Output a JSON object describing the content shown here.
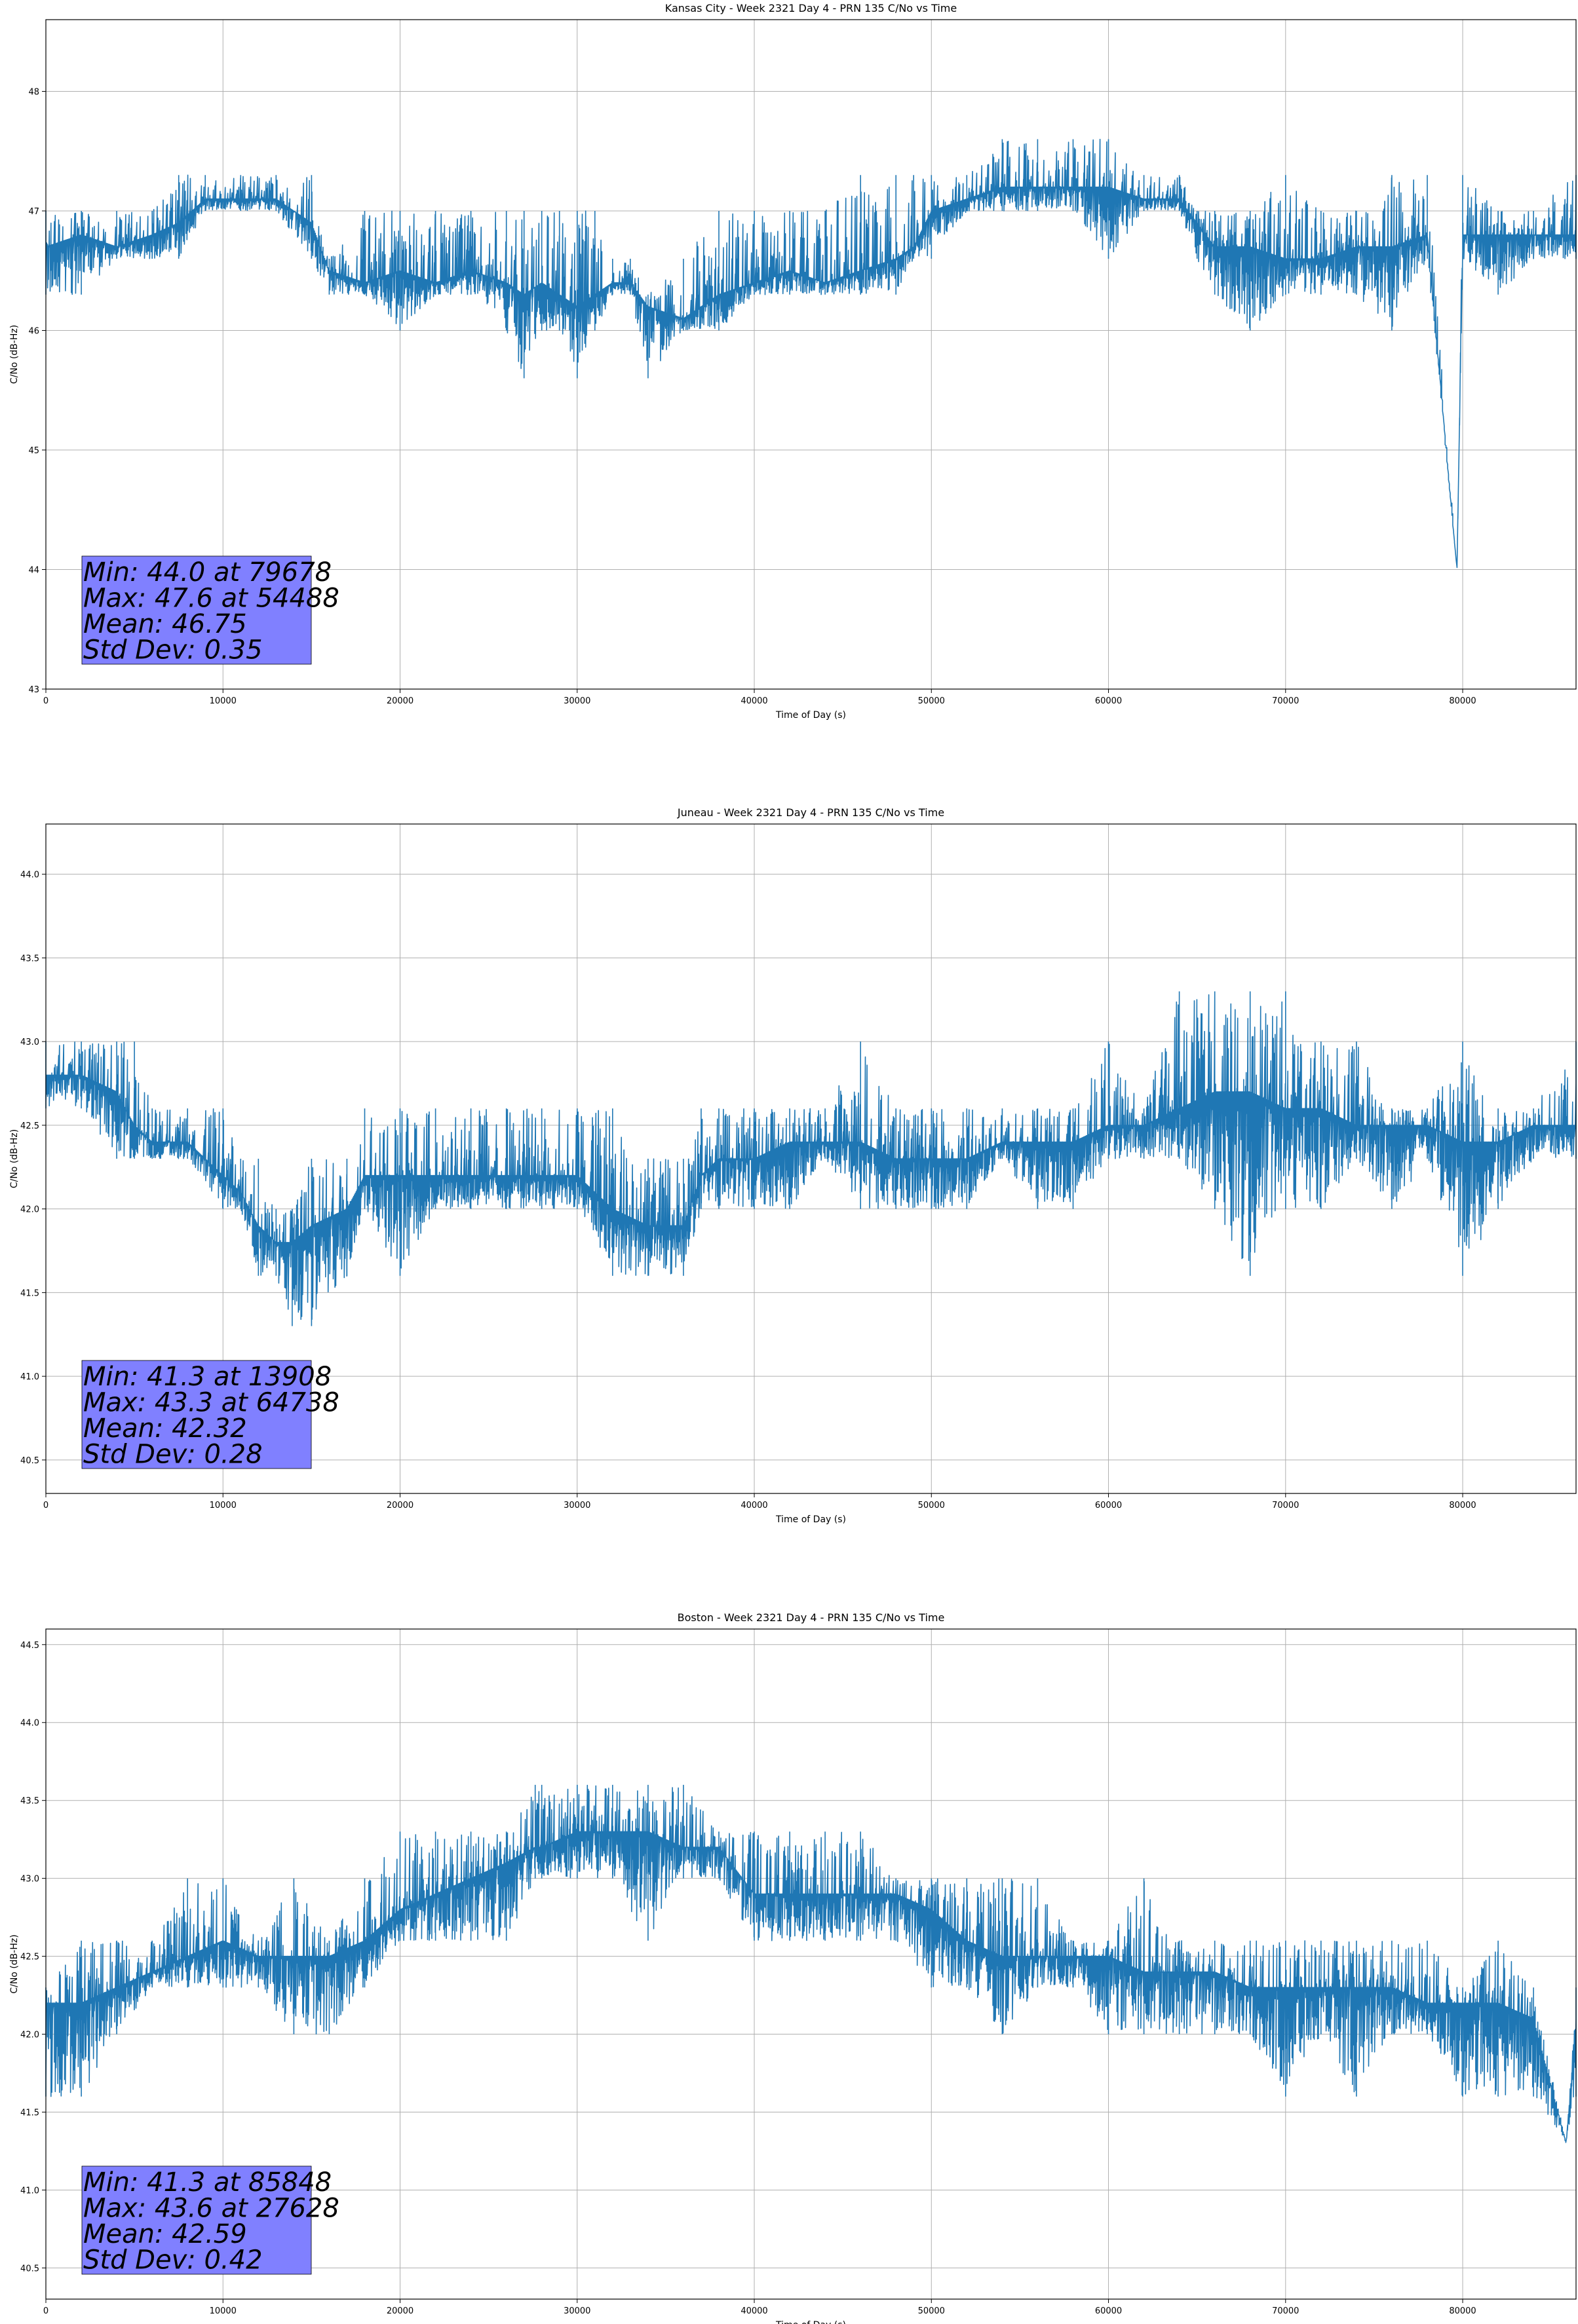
{
  "chart_data": [
    {
      "type": "line",
      "title": "Kansas City - Week 2321 Day 4 - PRN 135 C/No vs Time",
      "xlabel": "Time of Day (s)",
      "ylabel": "C/No (dB-Hz)",
      "xlim": [
        0,
        86400
      ],
      "ylim": [
        43,
        48.6
      ],
      "xticks": [
        0,
        10000,
        20000,
        30000,
        40000,
        50000,
        60000,
        70000,
        80000
      ],
      "yticks": [
        43,
        44,
        45,
        46,
        47,
        48
      ],
      "ytick_labels": [
        "43",
        "44",
        "45",
        "46",
        "47",
        "48"
      ],
      "grid": true,
      "color": "#1f77b4",
      "stats": [
        "Min: 44.0 at 79678",
        "Max: 47.6 at 54488",
        "Mean: 46.75",
        "Std Dev: 0.35"
      ],
      "series": [
        {
          "x": [
            0,
            2000,
            4000,
            6000,
            7500,
            9000,
            11000,
            13000,
            15000,
            16000,
            18000,
            20000,
            22000,
            24000,
            26000,
            27000,
            28000,
            29000,
            30000,
            31000,
            32000,
            33000,
            34000,
            36000,
            38000,
            40000,
            42000,
            44000,
            46000,
            48000,
            49000,
            50000,
            52000,
            54000,
            56000,
            58000,
            60000,
            62000,
            64000,
            65000,
            66000,
            68000,
            70000,
            72000,
            74000,
            76000,
            78000,
            79678,
            80000,
            82000,
            84000,
            86400
          ],
          "y": [
            46.7,
            46.8,
            46.7,
            46.8,
            46.9,
            47.1,
            47.1,
            47.1,
            46.9,
            46.5,
            46.4,
            46.5,
            46.4,
            46.5,
            46.4,
            46.3,
            46.4,
            46.3,
            46.2,
            46.3,
            46.4,
            46.4,
            46.2,
            46.1,
            46.3,
            46.4,
            46.5,
            46.4,
            46.5,
            46.6,
            46.7,
            47.0,
            47.1,
            47.2,
            47.2,
            47.2,
            47.2,
            47.1,
            47.1,
            46.9,
            46.7,
            46.7,
            46.6,
            46.6,
            46.7,
            46.7,
            46.8,
            44.0,
            46.8,
            46.8,
            46.8,
            46.8
          ],
          "lo": [
            46.3,
            46.3,
            46.6,
            46.6,
            46.6,
            47.0,
            47.0,
            47.0,
            46.6,
            46.3,
            46.3,
            46.0,
            46.3,
            46.3,
            46.0,
            45.6,
            46.0,
            46.0,
            45.6,
            46.0,
            46.3,
            46.3,
            45.6,
            46.0,
            46.0,
            46.3,
            46.3,
            46.3,
            46.3,
            46.3,
            46.6,
            46.6,
            47.0,
            47.0,
            47.0,
            47.0,
            46.6,
            47.0,
            47.0,
            46.6,
            46.3,
            46.0,
            46.3,
            46.3,
            46.3,
            46.0,
            46.6,
            44.0,
            46.6,
            46.3,
            46.6,
            46.6
          ],
          "hi": [
            47.0,
            47.0,
            47.0,
            47.0,
            47.3,
            47.3,
            47.3,
            47.3,
            47.3,
            46.6,
            47.0,
            47.0,
            47.0,
            47.0,
            47.0,
            47.0,
            47.0,
            47.0,
            47.0,
            47.0,
            46.6,
            46.6,
            46.3,
            46.6,
            47.0,
            47.0,
            47.0,
            47.0,
            47.3,
            47.3,
            47.3,
            47.3,
            47.3,
            47.6,
            47.6,
            47.6,
            47.6,
            47.3,
            47.3,
            47.0,
            47.0,
            47.0,
            47.3,
            47.0,
            47.0,
            47.3,
            47.3,
            44.0,
            47.3,
            47.0,
            47.0,
            47.3
          ]
        }
      ]
    },
    {
      "type": "line",
      "title": "Juneau - Week 2321 Day 4 - PRN 135 C/No vs Time",
      "xlabel": "Time of Day (s)",
      "ylabel": "C/No (dB-Hz)",
      "xlim": [
        0,
        86400
      ],
      "ylim": [
        40.3,
        44.3
      ],
      "xticks": [
        0,
        10000,
        20000,
        30000,
        40000,
        50000,
        60000,
        70000,
        80000
      ],
      "yticks": [
        40.5,
        41.0,
        41.5,
        42.0,
        42.5,
        43.0,
        43.5,
        44.0
      ],
      "ytick_labels": [
        "40.5",
        "41.0",
        "41.5",
        "42.0",
        "42.5",
        "43.0",
        "43.5",
        "44.0"
      ],
      "grid": true,
      "color": "#1f77b4",
      "stats": [
        "Min: 41.3 at 13908",
        "Max: 43.3 at 64738",
        "Mean: 42.32",
        "Std Dev: 0.28"
      ],
      "series": [
        {
          "x": [
            0,
            2000,
            4000,
            5000,
            6000,
            8000,
            10000,
            11000,
            12000,
            13000,
            13908,
            15000,
            17000,
            18000,
            20000,
            22000,
            24000,
            26000,
            28000,
            30000,
            32000,
            34000,
            36000,
            37000,
            38000,
            40000,
            42000,
            44000,
            46000,
            48000,
            50000,
            52000,
            54000,
            56000,
            58000,
            60000,
            62000,
            64000,
            66000,
            68000,
            70000,
            72000,
            74000,
            76000,
            78000,
            80000,
            82000,
            84000,
            86400
          ],
          "y": [
            42.8,
            42.8,
            42.7,
            42.5,
            42.4,
            42.4,
            42.2,
            42.1,
            41.9,
            41.8,
            41.8,
            41.9,
            42.0,
            42.2,
            42.2,
            42.2,
            42.2,
            42.2,
            42.2,
            42.2,
            42.0,
            41.9,
            41.9,
            42.2,
            42.3,
            42.3,
            42.4,
            42.4,
            42.4,
            42.3,
            42.3,
            42.3,
            42.4,
            42.4,
            42.4,
            42.5,
            42.5,
            42.6,
            42.7,
            42.7,
            42.6,
            42.6,
            42.5,
            42.5,
            42.5,
            42.4,
            42.4,
            42.5,
            42.5
          ],
          "lo": [
            42.6,
            42.6,
            42.3,
            42.3,
            42.3,
            42.3,
            42.0,
            42.0,
            41.6,
            41.6,
            41.3,
            41.3,
            41.6,
            42.0,
            41.6,
            42.0,
            42.0,
            42.0,
            42.0,
            42.0,
            41.6,
            41.6,
            41.6,
            42.0,
            42.0,
            42.0,
            42.0,
            42.3,
            42.0,
            42.0,
            42.0,
            42.0,
            42.3,
            42.0,
            42.0,
            42.3,
            42.3,
            42.3,
            42.0,
            41.6,
            42.0,
            42.0,
            42.3,
            42.0,
            42.3,
            41.6,
            42.0,
            42.3,
            42.3
          ],
          "hi": [
            43.0,
            43.0,
            43.0,
            43.0,
            42.6,
            42.6,
            42.6,
            42.3,
            42.3,
            42.0,
            42.0,
            42.3,
            42.3,
            42.6,
            42.6,
            42.6,
            42.6,
            42.6,
            42.6,
            42.6,
            42.6,
            42.3,
            42.3,
            42.6,
            42.6,
            42.6,
            42.6,
            42.6,
            43.0,
            42.6,
            42.6,
            42.6,
            42.6,
            42.6,
            42.6,
            43.0,
            42.6,
            43.3,
            43.3,
            43.3,
            43.3,
            43.0,
            43.0,
            42.6,
            42.6,
            43.0,
            42.6,
            42.6,
            43.0
          ]
        }
      ]
    },
    {
      "type": "line",
      "title": "Boston - Week 2321 Day 4 - PRN 135 C/No vs Time",
      "xlabel": "Time of Day (s)",
      "ylabel": "C/No (dB-Hz)",
      "xlim": [
        0,
        86400
      ],
      "ylim": [
        40.3,
        44.6
      ],
      "xticks": [
        0,
        10000,
        20000,
        30000,
        40000,
        50000,
        60000,
        70000,
        80000
      ],
      "yticks": [
        40.5,
        41.0,
        41.5,
        42.0,
        42.5,
        43.0,
        43.5,
        44.0,
        44.5
      ],
      "ytick_labels": [
        "40.5",
        "41.0",
        "41.5",
        "42.0",
        "42.5",
        "43.0",
        "43.5",
        "44.0",
        "44.5"
      ],
      "grid": true,
      "color": "#1f77b4",
      "stats": [
        "Min: 41.3 at 85848",
        "Max: 43.6 at 27628",
        "Mean: 42.59",
        "Std Dev: 0.42"
      ],
      "series": [
        {
          "x": [
            0,
            2000,
            4000,
            6000,
            8000,
            10000,
            12000,
            14000,
            16000,
            18000,
            20000,
            22000,
            24000,
            26000,
            27628,
            28000,
            30000,
            32000,
            34000,
            36000,
            38000,
            40000,
            42000,
            44000,
            46000,
            48000,
            50000,
            52000,
            54000,
            56000,
            58000,
            60000,
            62000,
            64000,
            66000,
            68000,
            70000,
            72000,
            74000,
            76000,
            78000,
            80000,
            82000,
            84000,
            85848,
            86400
          ],
          "y": [
            42.2,
            42.2,
            42.3,
            42.4,
            42.5,
            42.6,
            42.5,
            42.5,
            42.5,
            42.6,
            42.8,
            42.9,
            43.0,
            43.1,
            43.2,
            43.2,
            43.3,
            43.3,
            43.3,
            43.2,
            43.2,
            42.9,
            42.9,
            42.9,
            42.9,
            42.9,
            42.8,
            42.6,
            42.5,
            42.5,
            42.5,
            42.5,
            42.4,
            42.4,
            42.4,
            42.3,
            42.3,
            42.3,
            42.3,
            42.3,
            42.2,
            42.2,
            42.2,
            42.1,
            41.3,
            42.1
          ],
          "lo": [
            41.6,
            41.6,
            42.0,
            42.3,
            42.3,
            42.3,
            42.3,
            42.0,
            42.0,
            42.3,
            42.6,
            42.6,
            42.6,
            42.6,
            43.0,
            43.0,
            43.0,
            43.0,
            42.6,
            43.0,
            43.0,
            42.6,
            42.6,
            42.6,
            42.6,
            42.6,
            42.3,
            42.3,
            42.0,
            42.3,
            42.3,
            42.0,
            42.0,
            42.0,
            42.0,
            42.0,
            41.6,
            42.0,
            41.6,
            42.0,
            42.0,
            41.6,
            41.6,
            41.6,
            41.3,
            41.6
          ],
          "hi": [
            42.3,
            42.6,
            42.6,
            42.6,
            43.0,
            43.0,
            42.6,
            43.0,
            42.6,
            43.0,
            43.3,
            43.3,
            43.3,
            43.3,
            43.6,
            43.6,
            43.6,
            43.6,
            43.6,
            43.6,
            43.3,
            43.3,
            43.3,
            43.3,
            43.3,
            43.0,
            43.0,
            43.0,
            43.0,
            43.0,
            42.6,
            42.6,
            43.0,
            42.6,
            42.6,
            42.6,
            42.6,
            42.6,
            42.6,
            42.6,
            42.6,
            42.3,
            42.6,
            42.3,
            41.3,
            42.3
          ]
        }
      ]
    }
  ]
}
